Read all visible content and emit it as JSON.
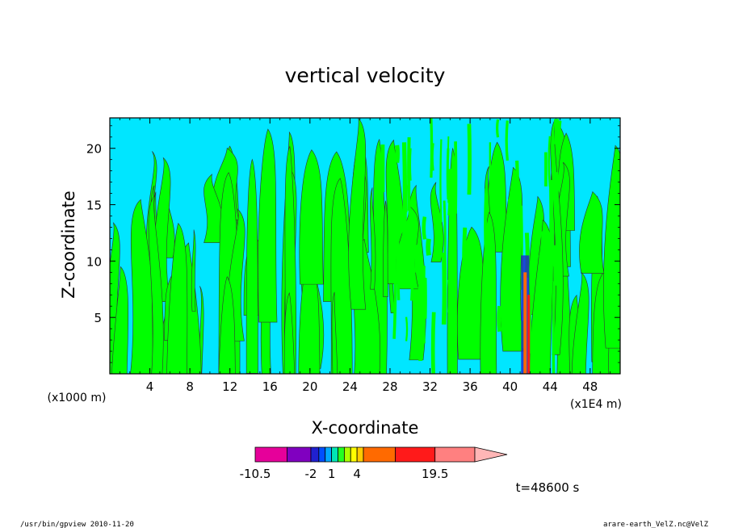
{
  "chart_data": {
    "type": "heatmap",
    "title": "vertical velocity",
    "xlabel": "X-coordinate",
    "ylabel": "Z-coordinate",
    "x_unit_left": "(x1000 m)",
    "x_unit_right": "(x1E4 m)",
    "xlim": [
      0,
      51
    ],
    "ylim": [
      0,
      22.7
    ],
    "x_ticks": [
      "4",
      "8",
      "12",
      "16",
      "20",
      "24",
      "28",
      "32",
      "36",
      "40",
      "44",
      "48"
    ],
    "x_tick_values": [
      4,
      8,
      12,
      16,
      20,
      24,
      28,
      32,
      36,
      40,
      44,
      48
    ],
    "y_ticks": [
      "5",
      "10",
      "15",
      "20"
    ],
    "y_tick_values": [
      5,
      10,
      15,
      20
    ],
    "colorbar": {
      "labels": [
        "-10.5",
        "-2",
        "1",
        "4",
        "19.5"
      ],
      "colors": [
        "#e6009a",
        "#8000c0",
        "#2020d0",
        "#0050ff",
        "#00a8ff",
        "#00e6b4",
        "#22ff22",
        "#aaff00",
        "#ffff00",
        "#ffcc00",
        "#ff6a00",
        "#ff1a1a",
        "#ff8080",
        "#ffb6b6"
      ]
    },
    "background_color": "#00e6ff",
    "positive_color": "#00ff00",
    "time_label": "t=48600 s"
  },
  "footer": {
    "left": "/usr/bin/gpview   2010-11-20",
    "right": "arare-earth_VelZ.nc@VelZ"
  }
}
